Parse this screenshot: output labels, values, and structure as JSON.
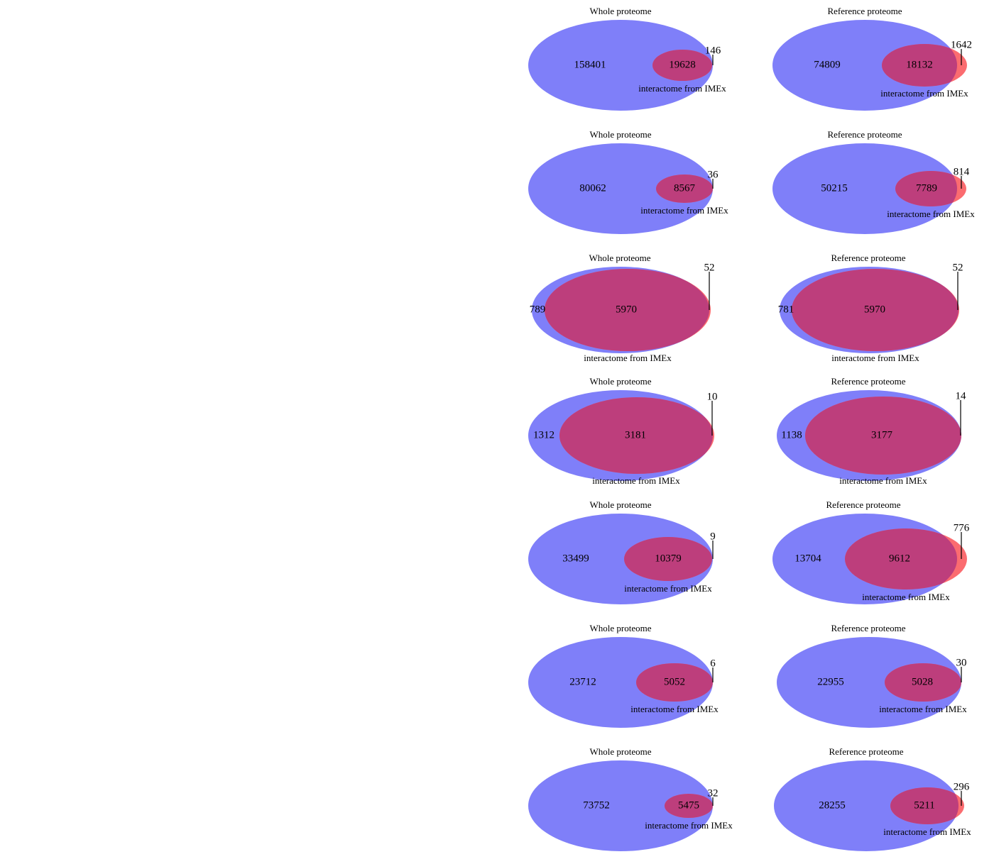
{
  "colors": {
    "proteome_fill": "#7f7ff9",
    "interactome_fill": "#fb6c70",
    "overlap_fill": "#bd3e7c",
    "text": "#000000",
    "leader_line": "#000000"
  },
  "panels": [
    {
      "title": "Whole proteome",
      "proteome_only": "158401",
      "overlap": "19628",
      "interactome_only": "146",
      "set_label": "interactome from IMEx"
    },
    {
      "title": "Reference proteome",
      "proteome_only": "74809",
      "overlap": "18132",
      "interactome_only": "1642",
      "set_label": "interactome from IMEx"
    },
    {
      "title": "Whole proteome",
      "proteome_only": "80062",
      "overlap": "8567",
      "interactome_only": "36",
      "set_label": "interactome from IMEx"
    },
    {
      "title": "Reference proteome",
      "proteome_only": "50215",
      "overlap": "7789",
      "interactome_only": "814",
      "set_label": "interactome from IMEx"
    },
    {
      "title": "Whole proteome",
      "proteome_only": "789",
      "overlap": "5970",
      "interactome_only": "52",
      "set_label": "interactome from IMEx"
    },
    {
      "title": "Reference proteome",
      "proteome_only": "781",
      "overlap": "5970",
      "interactome_only": "52",
      "set_label": "interactome from IMEx"
    },
    {
      "title": "Whole proteome",
      "proteome_only": "1312",
      "overlap": "3181",
      "interactome_only": "10",
      "set_label": "interactome from IMEx"
    },
    {
      "title": "Reference proteome",
      "proteome_only": "1138",
      "overlap": "3177",
      "interactome_only": "14",
      "set_label": "interactome from IMEx"
    },
    {
      "title": "Whole proteome",
      "proteome_only": "33499",
      "overlap": "10379",
      "interactome_only": "9",
      "set_label": "interactome from IMEx"
    },
    {
      "title": "Reference proteome",
      "proteome_only": "13704",
      "overlap": "9612",
      "interactome_only": "776",
      "set_label": "interactome from IMEx"
    },
    {
      "title": "Whole proteome",
      "proteome_only": "23712",
      "overlap": "5052",
      "interactome_only": "6",
      "set_label": "interactome from IMEx"
    },
    {
      "title": "Reference proteome",
      "proteome_only": "22955",
      "overlap": "5028",
      "interactome_only": "30",
      "set_label": "interactome from IMEx"
    },
    {
      "title": "Whole proteome",
      "proteome_only": "73752",
      "overlap": "5475",
      "interactome_only": "32",
      "set_label": "interactome from IMEx"
    },
    {
      "title": "Reference proteome",
      "proteome_only": "28255",
      "overlap": "5211",
      "interactome_only": "296",
      "set_label": "interactome from IMEx"
    }
  ]
}
